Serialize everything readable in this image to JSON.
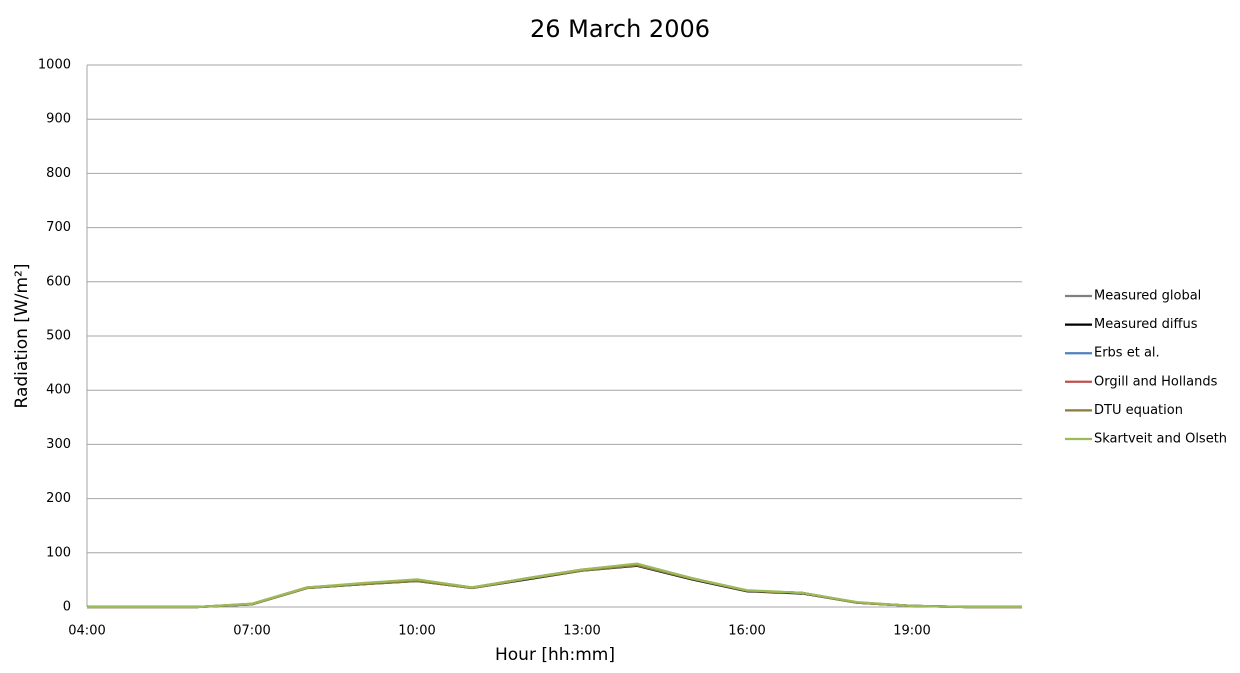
{
  "chart_data": {
    "type": "line",
    "title": "26 March 2006",
    "xlabel": "Hour [hh:mm]",
    "ylabel": "Radiation [W/m²]",
    "categories": [
      "04:00",
      null,
      null,
      "07:00",
      null,
      null,
      "10:00",
      null,
      null,
      "13:00",
      null,
      null,
      "16:00",
      null,
      null,
      "19:00",
      null,
      null
    ],
    "series": [
      {
        "name": "Measured global",
        "color": "#808080",
        "values": [
          0,
          0,
          0,
          5,
          36,
          43,
          50,
          36,
          52,
          68,
          78,
          52,
          30,
          26,
          8,
          2,
          0,
          0
        ]
      },
      {
        "name": "Measured diffus",
        "color": "#000000",
        "values": [
          0,
          0,
          0,
          5,
          35,
          42,
          48,
          35,
          51,
          67,
          76,
          51,
          29,
          25,
          8,
          2,
          0,
          0
        ]
      },
      {
        "name": "Erbs et al.",
        "color": "#4f81bd",
        "values": [
          0,
          0,
          0,
          5,
          35,
          42,
          49,
          35,
          52,
          68,
          77,
          52,
          30,
          26,
          8,
          2,
          0,
          0
        ]
      },
      {
        "name": "Orgill and Hollands",
        "color": "#c0504d",
        "values": [
          0,
          0,
          0,
          6,
          36,
          43,
          50,
          36,
          53,
          69,
          79,
          53,
          30,
          26,
          8,
          2,
          0,
          0
        ]
      },
      {
        "name": "DTU equation",
        "color": "#8c7a3c",
        "values": [
          0,
          0,
          0,
          5,
          35,
          42,
          48,
          35,
          52,
          67,
          77,
          52,
          30,
          26,
          8,
          2,
          0,
          0
        ]
      },
      {
        "name": "Skartveit and Olseth",
        "color": "#9bbb59",
        "values": [
          0,
          0,
          0,
          6,
          36,
          44,
          51,
          36,
          53,
          69,
          80,
          53,
          31,
          26,
          9,
          2,
          0,
          0
        ]
      }
    ],
    "ylim": [
      0,
      1000
    ],
    "yticks": [
      0,
      100,
      200,
      300,
      400,
      500,
      600,
      700,
      800,
      900,
      1000
    ],
    "grid": true,
    "legend": "right"
  }
}
